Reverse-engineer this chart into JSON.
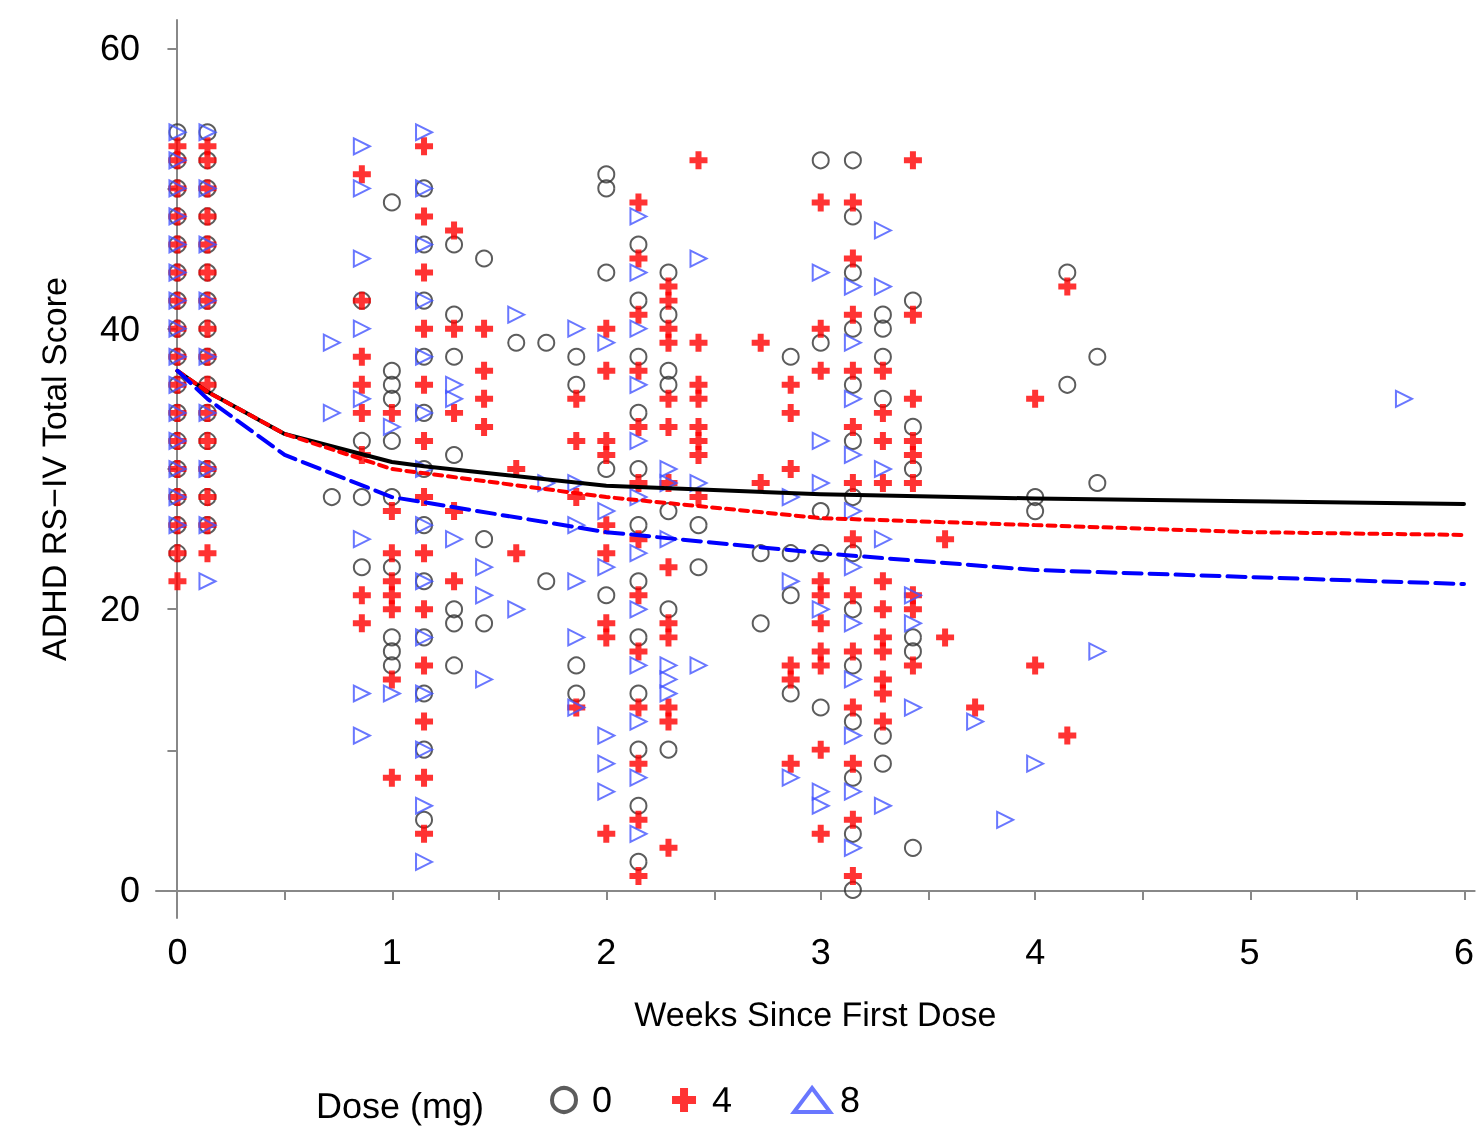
{
  "chart_data": {
    "type": "scatter",
    "xlabel": "Weeks Since First Dose",
    "ylabel": "ADHD RS−IV Total Score",
    "legend_title": "Dose (mg)",
    "legend": "bottom",
    "grid": false,
    "xlim": [
      -0.1,
      6.05
    ],
    "xticks": [
      0,
      {
        "value": 0.5,
        "label": null
      },
      1,
      {
        "value": 1.5,
        "label": null
      },
      2,
      {
        "value": 2.5,
        "label": null
      },
      3,
      {
        "value": 3.5,
        "label": null
      },
      4,
      {
        "value": 4.5,
        "label": null
      },
      5,
      {
        "value": 5.5,
        "label": null
      },
      6
    ],
    "ylim": [
      -2,
      62
    ],
    "yticks": [
      0,
      {
        "value": 10,
        "label": null
      },
      20,
      {
        "value": 30,
        "label": null
      },
      40,
      {
        "value": 50,
        "label": null
      },
      60
    ],
    "series": [
      {
        "name": "0",
        "marker": "circle",
        "color": "#333333",
        "x": [
          0,
          0,
          0,
          0,
          0,
          0,
          0,
          0,
          0,
          0,
          0,
          0,
          0,
          0,
          0,
          0,
          0.14,
          0.14,
          0.14,
          0.14,
          0.14,
          0.14,
          0.14,
          0.14,
          0.14,
          0.14,
          0.14,
          0.14,
          0.14,
          0.14,
          0.14,
          0.72,
          0.86,
          0.86,
          0.86,
          0.86,
          1.0,
          1.0,
          1.0,
          1.0,
          1.0,
          1.0,
          1.0,
          1.0,
          1.0,
          1.0,
          1.15,
          1.15,
          1.15,
          1.15,
          1.15,
          1.15,
          1.15,
          1.15,
          1.15,
          1.15,
          1.15,
          1.15,
          1.29,
          1.29,
          1.29,
          1.29,
          1.29,
          1.29,
          1.29,
          1.43,
          1.43,
          1.43,
          1.58,
          1.72,
          1.72,
          1.86,
          1.86,
          1.86,
          1.86,
          2.0,
          2.0,
          2.0,
          2.0,
          2.0,
          2.15,
          2.15,
          2.15,
          2.15,
          2.15,
          2.15,
          2.15,
          2.15,
          2.15,
          2.15,
          2.15,
          2.15,
          2.29,
          2.29,
          2.29,
          2.29,
          2.29,
          2.29,
          2.29,
          2.43,
          2.43,
          2.72,
          2.72,
          2.86,
          2.86,
          2.86,
          2.86,
          3.0,
          3.0,
          3.0,
          3.0,
          3.0,
          3.15,
          3.15,
          3.15,
          3.15,
          3.15,
          3.15,
          3.15,
          3.15,
          3.15,
          3.15,
          3.15,
          3.15,
          3.15,
          3.15,
          3.29,
          3.29,
          3.29,
          3.29,
          3.29,
          3.29,
          3.43,
          3.43,
          3.43,
          3.43,
          3.43,
          3.43,
          4.0,
          4.0,
          4.15,
          4.15,
          4.29,
          4.29
        ],
        "values": [
          24,
          26,
          28,
          30,
          32,
          34,
          36,
          38,
          40,
          42,
          44,
          46,
          48,
          50,
          52,
          54,
          26,
          28,
          30,
          32,
          34,
          36,
          38,
          40,
          42,
          44,
          46,
          48,
          50,
          52,
          54,
          28,
          42,
          32,
          28,
          23,
          49,
          37,
          36,
          35,
          32,
          28,
          23,
          18,
          17,
          16,
          5,
          10,
          14,
          18,
          22,
          26,
          30,
          34,
          38,
          42,
          46,
          50,
          46,
          41,
          38,
          31,
          20,
          19,
          16,
          45,
          25,
          19,
          39,
          39,
          22,
          38,
          36,
          16,
          14,
          51,
          50,
          44,
          30,
          21,
          2,
          6,
          10,
          14,
          18,
          22,
          26,
          30,
          34,
          38,
          42,
          46,
          44,
          41,
          37,
          36,
          27,
          20,
          10,
          26,
          23,
          24,
          19,
          38,
          24,
          21,
          14,
          52,
          39,
          27,
          24,
          13,
          0,
          4,
          8,
          12,
          16,
          20,
          24,
          28,
          32,
          36,
          40,
          44,
          48,
          52,
          41,
          40,
          38,
          35,
          11,
          9,
          42,
          33,
          30,
          18,
          17,
          3,
          28,
          27,
          44,
          36,
          38,
          29
        ]
      },
      {
        "name": "4",
        "marker": "cross",
        "color": "#ff0000",
        "x": [
          0,
          0,
          0,
          0,
          0,
          0,
          0,
          0,
          0,
          0,
          0,
          0,
          0,
          0,
          0,
          0,
          0,
          0.14,
          0.14,
          0.14,
          0.14,
          0.14,
          0.14,
          0.14,
          0.14,
          0.14,
          0.14,
          0.14,
          0.14,
          0.14,
          0.14,
          0.14,
          0.14,
          0.86,
          0.86,
          0.86,
          0.86,
          0.86,
          0.86,
          0.86,
          0.86,
          1.0,
          1.0,
          1.0,
          1.0,
          1.0,
          1.0,
          1.0,
          1.0,
          1.15,
          1.15,
          1.15,
          1.15,
          1.15,
          1.15,
          1.15,
          1.15,
          1.15,
          1.15,
          1.15,
          1.15,
          1.15,
          1.29,
          1.29,
          1.29,
          1.29,
          1.29,
          1.43,
          1.43,
          1.43,
          1.43,
          1.58,
          1.58,
          1.86,
          1.86,
          1.86,
          1.86,
          2.0,
          2.0,
          2.0,
          2.0,
          2.0,
          2.0,
          2.0,
          2.0,
          2.0,
          2.15,
          2.15,
          2.15,
          2.15,
          2.15,
          2.15,
          2.15,
          2.15,
          2.15,
          2.15,
          2.15,
          2.15,
          2.15,
          2.29,
          2.29,
          2.29,
          2.29,
          2.29,
          2.29,
          2.29,
          2.29,
          2.29,
          2.29,
          2.29,
          2.29,
          2.29,
          2.43,
          2.43,
          2.43,
          2.43,
          2.43,
          2.43,
          2.43,
          2.43,
          2.72,
          2.72,
          2.86,
          2.86,
          2.86,
          2.86,
          2.86,
          2.86,
          3.0,
          3.0,
          3.0,
          3.0,
          3.0,
          3.0,
          3.0,
          3.0,
          3.0,
          3.0,
          3.15,
          3.15,
          3.15,
          3.15,
          3.15,
          3.15,
          3.15,
          3.15,
          3.15,
          3.15,
          3.15,
          3.15,
          3.15,
          3.29,
          3.29,
          3.29,
          3.29,
          3.29,
          3.29,
          3.29,
          3.29,
          3.29,
          3.29,
          3.29,
          3.43,
          3.43,
          3.43,
          3.43,
          3.43,
          3.43,
          3.43,
          3.43,
          3.43,
          3.58,
          3.58,
          3.72,
          4.0,
          4.0,
          4.15,
          4.15
        ],
        "values": [
          22,
          24,
          26,
          28,
          30,
          32,
          34,
          36,
          38,
          40,
          42,
          44,
          46,
          48,
          50,
          52,
          53,
          24,
          26,
          28,
          30,
          32,
          34,
          36,
          38,
          40,
          42,
          44,
          46,
          48,
          50,
          52,
          53,
          51,
          42,
          38,
          36,
          34,
          31,
          21,
          19,
          34,
          27,
          24,
          22,
          21,
          20,
          15,
          8,
          4,
          8,
          12,
          16,
          20,
          24,
          28,
          32,
          36,
          40,
          44,
          48,
          53,
          47,
          40,
          34,
          27,
          22,
          40,
          37,
          35,
          33,
          30,
          24,
          35,
          32,
          28,
          13,
          40,
          37,
          32,
          31,
          26,
          24,
          19,
          18,
          4,
          1,
          5,
          9,
          13,
          17,
          21,
          25,
          29,
          33,
          37,
          41,
          45,
          49,
          43,
          42,
          40,
          39,
          35,
          33,
          29,
          23,
          19,
          18,
          13,
          12,
          3,
          52,
          39,
          36,
          35,
          33,
          32,
          31,
          28,
          39,
          29,
          36,
          34,
          30,
          16,
          15,
          9,
          49,
          40,
          37,
          22,
          21,
          19,
          17,
          16,
          10,
          4,
          1,
          5,
          9,
          13,
          17,
          21,
          25,
          29,
          33,
          37,
          41,
          45,
          49,
          37,
          34,
          32,
          29,
          22,
          20,
          18,
          17,
          15,
          14,
          12,
          52,
          41,
          35,
          32,
          31,
          29,
          21,
          20,
          16,
          25,
          18,
          13,
          35,
          16,
          43,
          11
        ]
      },
      {
        "name": "8",
        "marker": "triangle",
        "color": "#4455ff",
        "x": [
          0,
          0,
          0,
          0,
          0,
          0,
          0,
          0,
          0,
          0,
          0,
          0,
          0,
          0,
          0,
          0.14,
          0.14,
          0.14,
          0.14,
          0.14,
          0.14,
          0.14,
          0.14,
          0.14,
          0.72,
          0.72,
          0.86,
          0.86,
          0.86,
          0.86,
          0.86,
          0.86,
          0.86,
          0.86,
          1.0,
          1.0,
          1.15,
          1.15,
          1.15,
          1.15,
          1.15,
          1.15,
          1.15,
          1.15,
          1.15,
          1.15,
          1.15,
          1.15,
          1.15,
          1.15,
          1.29,
          1.29,
          1.29,
          1.43,
          1.43,
          1.43,
          1.58,
          1.58,
          1.72,
          1.86,
          1.86,
          1.86,
          1.86,
          1.86,
          1.86,
          2.0,
          2.0,
          2.0,
          2.0,
          2.0,
          2.0,
          2.15,
          2.15,
          2.15,
          2.15,
          2.15,
          2.15,
          2.15,
          2.15,
          2.15,
          2.15,
          2.15,
          2.15,
          2.29,
          2.29,
          2.29,
          2.29,
          2.29,
          2.29,
          2.43,
          2.43,
          2.43,
          2.86,
          2.86,
          2.86,
          3.0,
          3.0,
          3.0,
          3.0,
          3.0,
          3.0,
          3.15,
          3.15,
          3.15,
          3.15,
          3.15,
          3.15,
          3.15,
          3.15,
          3.15,
          3.15,
          3.15,
          3.29,
          3.29,
          3.29,
          3.29,
          3.29,
          3.43,
          3.43,
          3.43,
          3.72,
          3.86,
          4.0,
          4.29,
          5.72
        ],
        "values": [
          26,
          28,
          30,
          32,
          34,
          36,
          38,
          40,
          42,
          44,
          46,
          48,
          50,
          52,
          54,
          22,
          26,
          30,
          34,
          38,
          42,
          46,
          50,
          54,
          39,
          34,
          53,
          50,
          45,
          40,
          35,
          25,
          14,
          11,
          33,
          14,
          2,
          6,
          10,
          14,
          18,
          22,
          26,
          30,
          34,
          38,
          42,
          46,
          50,
          54,
          36,
          35,
          25,
          23,
          21,
          15,
          41,
          20,
          29,
          40,
          29,
          26,
          22,
          18,
          13,
          39,
          27,
          23,
          11,
          9,
          7,
          4,
          8,
          12,
          16,
          20,
          24,
          28,
          32,
          36,
          40,
          44,
          48,
          30,
          29,
          25,
          16,
          15,
          14,
          45,
          29,
          16,
          28,
          22,
          8,
          44,
          32,
          29,
          20,
          7,
          6,
          3,
          7,
          11,
          15,
          19,
          23,
          27,
          31,
          35,
          39,
          43,
          47,
          43,
          30,
          25,
          6,
          21,
          19,
          13,
          12,
          5,
          9,
          17,
          35
        ]
      },
      {
        "type": "line",
        "marker": "none",
        "line_style": "solid",
        "color": "#000000",
        "x": [
          0,
          0.14,
          0.5,
          1,
          1.15,
          2,
          3,
          4,
          5,
          6
        ],
        "values": [
          37,
          35.5,
          32.5,
          30.5,
          30.2,
          28.8,
          28.2,
          27.9,
          27.7,
          27.5
        ]
      },
      {
        "type": "line",
        "marker": "none",
        "line_style": "dotted",
        "color": "#ff0000",
        "x": [
          0,
          0.14,
          0.5,
          1,
          2,
          3,
          4,
          5,
          6
        ],
        "values": [
          37,
          35.5,
          32.5,
          30,
          28,
          26.5,
          26,
          25.5,
          25.3
        ]
      },
      {
        "type": "line",
        "marker": "none",
        "line_style": "dashed",
        "color": "#0000ff",
        "x": [
          0,
          0.14,
          0.5,
          1,
          2,
          3,
          4,
          5,
          6
        ],
        "values": [
          37,
          35,
          31,
          28,
          25.5,
          24,
          22.8,
          22.3,
          21.8
        ]
      }
    ]
  }
}
